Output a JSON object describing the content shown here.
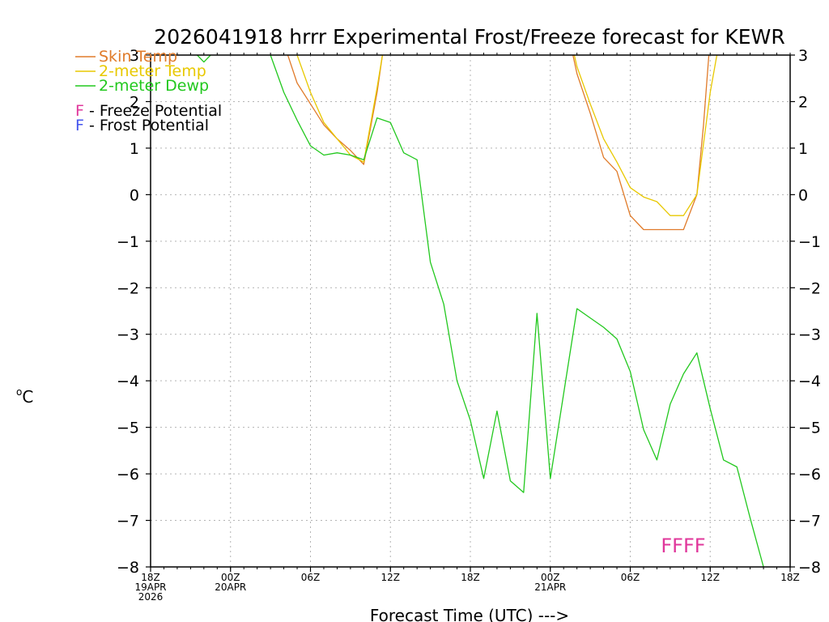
{
  "chart_data": {
    "type": "line",
    "title": "2026041918 hrrr Experimental Frost/Freeze forecast for KEWR",
    "xlabel": "Forecast Time (UTC) --->",
    "ylabel": "°C",
    "ylabel_sup": "o",
    "ylabel_main": "C",
    "ylim": [
      -8,
      3
    ],
    "xlim": [
      0,
      48
    ],
    "grid": true,
    "y_ticks": [
      3,
      2,
      1,
      0,
      -1,
      -2,
      -3,
      -4,
      -5,
      -6,
      -7,
      -8
    ],
    "x_ticks": [
      {
        "x": 0,
        "lines": [
          "18Z",
          "19APR",
          "2026"
        ]
      },
      {
        "x": 6,
        "lines": [
          "00Z",
          "20APR"
        ]
      },
      {
        "x": 12,
        "lines": [
          "06Z"
        ]
      },
      {
        "x": 18,
        "lines": [
          "12Z"
        ]
      },
      {
        "x": 24,
        "lines": [
          "18Z"
        ]
      },
      {
        "x": 30,
        "lines": [
          "00Z",
          "21APR"
        ]
      },
      {
        "x": 36,
        "lines": [
          "06Z"
        ]
      },
      {
        "x": 42,
        "lines": [
          "12Z"
        ]
      },
      {
        "x": 48,
        "lines": [
          "18Z"
        ]
      }
    ],
    "legend": [
      {
        "label": "Skin Temp",
        "color": "#e07b2a"
      },
      {
        "label": "2-meter Temp",
        "color": "#e8c800"
      },
      {
        "label": "2-meter Dewp",
        "color": "#22c81e"
      }
    ],
    "potential_legend": [
      {
        "letter": "F",
        "text": " - Freeze Potential",
        "letter_color": "#e0379b"
      },
      {
        "letter": "F",
        "text": " - Frost Potential",
        "letter_color": "#4455ee"
      }
    ],
    "series": [
      {
        "name": "Skin Temp",
        "color": "#e07b2a",
        "segments": [
          [
            [
              10.3,
              3
            ],
            [
              11,
              2.4
            ],
            [
              12,
              1.95
            ],
            [
              13,
              1.5
            ],
            [
              14,
              1.2
            ],
            [
              15,
              0.95
            ],
            [
              16,
              0.65
            ],
            [
              17,
              2.2
            ],
            [
              17.4,
              3
            ]
          ],
          [
            [
              31.7,
              3
            ],
            [
              32,
              2.6
            ],
            [
              33,
              1.75
            ],
            [
              34,
              0.8
            ],
            [
              35,
              0.5
            ],
            [
              36,
              -0.45
            ],
            [
              37,
              -0.75
            ],
            [
              38,
              -0.75
            ],
            [
              39,
              -0.75
            ],
            [
              40,
              -0.75
            ],
            [
              41,
              0
            ],
            [
              41.5,
              1.5
            ],
            [
              41.9,
              3
            ]
          ]
        ]
      },
      {
        "name": "2-meter Temp",
        "color": "#e8c800",
        "segments": [
          [
            [
              11,
              3
            ],
            [
              12,
              2.2
            ],
            [
              13,
              1.55
            ],
            [
              14,
              1.2
            ],
            [
              15,
              0.85
            ],
            [
              16,
              0.7
            ],
            [
              17,
              2.3
            ],
            [
              17.4,
              3
            ]
          ],
          [
            [
              31.8,
              3
            ],
            [
              32,
              2.75
            ],
            [
              33,
              1.95
            ],
            [
              34,
              1.2
            ],
            [
              35,
              0.7
            ],
            [
              36,
              0.15
            ],
            [
              37,
              -0.05
            ],
            [
              38,
              -0.15
            ],
            [
              39,
              -0.45
            ],
            [
              40,
              -0.45
            ],
            [
              41,
              0
            ],
            [
              42,
              2.2
            ],
            [
              42.5,
              3
            ]
          ]
        ]
      },
      {
        "name": "2-meter Dewp",
        "color": "#22c81e",
        "segments": [
          [
            [
              3.5,
              3
            ],
            [
              4,
              2.85
            ],
            [
              4.5,
              3
            ]
          ],
          [
            [
              9,
              3
            ],
            [
              10,
              2.2
            ],
            [
              11,
              1.6
            ],
            [
              12,
              1.05
            ],
            [
              13,
              0.85
            ],
            [
              14,
              0.9
            ],
            [
              15,
              0.85
            ],
            [
              16,
              0.75
            ],
            [
              17,
              1.65
            ],
            [
              18,
              1.55
            ],
            [
              19,
              0.9
            ],
            [
              20,
              0.75
            ],
            [
              21,
              -1.45
            ],
            [
              22,
              -2.35
            ],
            [
              23,
              -4.0
            ],
            [
              24,
              -4.85
            ],
            [
              25,
              -6.1
            ],
            [
              26,
              -4.65
            ],
            [
              27,
              -6.15
            ],
            [
              28,
              -6.4
            ],
            [
              29,
              -2.55
            ],
            [
              30,
              -6.1
            ],
            [
              32,
              -2.45
            ],
            [
              33,
              -2.65
            ],
            [
              34,
              -2.85
            ],
            [
              35,
              -3.1
            ],
            [
              36,
              -3.8
            ],
            [
              37,
              -5.05
            ],
            [
              38,
              -5.7
            ],
            [
              39,
              -4.5
            ],
            [
              40,
              -3.85
            ],
            [
              41,
              -3.4
            ],
            [
              42,
              -4.6
            ],
            [
              43,
              -5.7
            ],
            [
              44,
              -5.85
            ],
            [
              45,
              -6.95
            ],
            [
              46,
              -8.0
            ]
          ]
        ]
      }
    ],
    "annotation": {
      "text": "FFFF",
      "x": 38.3,
      "y": -7.55,
      "color": "#e0379b"
    }
  }
}
